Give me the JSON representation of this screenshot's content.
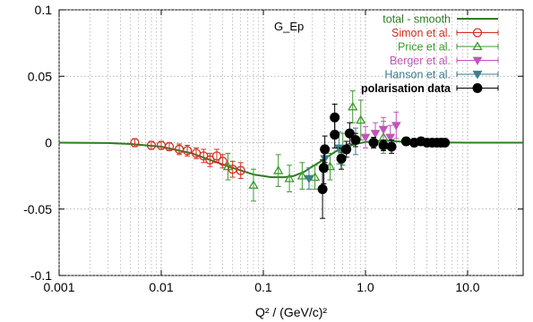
{
  "chart_data": {
    "type": "scatter",
    "title": "G_Ep",
    "xlabel": "Q² / (GeV/c)²",
    "x_scale": "log",
    "xlim": [
      0.001,
      35
    ],
    "ylim": [
      -0.1,
      0.1
    ],
    "x_ticks": [
      {
        "value": 0.001,
        "label": "0.001"
      },
      {
        "value": 0.01,
        "label": "0.01"
      },
      {
        "value": 0.1,
        "label": "0.1"
      },
      {
        "value": 1.0,
        "label": "1.0"
      },
      {
        "value": 10.0,
        "label": "10.0"
      }
    ],
    "y_ticks": [
      {
        "value": -0.1,
        "label": "-0.1"
      },
      {
        "value": -0.05,
        "label": "-0.05"
      },
      {
        "value": 0,
        "label": "0"
      },
      {
        "value": 0.05,
        "label": "0.05"
      },
      {
        "value": 0.1,
        "label": "0.1"
      }
    ],
    "grid": true,
    "legend_position": "top-right",
    "curve": {
      "name": "total - smooth",
      "color": "#2e7d22",
      "x": [
        0.001,
        0.003,
        0.005,
        0.01,
        0.02,
        0.03,
        0.05,
        0.08,
        0.12,
        0.16,
        0.2,
        0.25,
        0.3,
        0.35,
        0.4,
        0.5,
        0.6,
        0.8,
        1.0,
        1.5,
        2.0,
        3.0,
        5.0,
        10.0,
        35.0
      ],
      "y": [
        0,
        -0.0003,
        -0.001,
        -0.003,
        -0.008,
        -0.013,
        -0.019,
        -0.024,
        -0.026,
        -0.026,
        -0.025,
        -0.022,
        -0.018,
        -0.015,
        -0.012,
        -0.007,
        -0.004,
        -0.001,
        0.0005,
        0.0015,
        0.001,
        0.0005,
        0.0002,
        0,
        0
      ]
    },
    "series": [
      {
        "name": "Simon et al.",
        "marker": "circle",
        "color": "#d32f1f",
        "points": [
          {
            "x": 0.0055,
            "y": 0.0,
            "err": 0.003
          },
          {
            "x": 0.008,
            "y": -0.002,
            "err": 0.003
          },
          {
            "x": 0.01,
            "y": -0.002,
            "err": 0.003
          },
          {
            "x": 0.012,
            "y": -0.003,
            "err": 0.003
          },
          {
            "x": 0.015,
            "y": -0.005,
            "err": 0.004
          },
          {
            "x": 0.018,
            "y": -0.006,
            "err": 0.004
          },
          {
            "x": 0.022,
            "y": -0.008,
            "err": 0.004
          },
          {
            "x": 0.026,
            "y": -0.01,
            "err": 0.005
          },
          {
            "x": 0.03,
            "y": -0.013,
            "err": 0.005
          },
          {
            "x": 0.035,
            "y": -0.01,
            "err": 0.005
          },
          {
            "x": 0.04,
            "y": -0.014,
            "err": 0.005
          },
          {
            "x": 0.05,
            "y": -0.02,
            "err": 0.006
          },
          {
            "x": 0.06,
            "y": -0.021,
            "err": 0.006
          }
        ]
      },
      {
        "name": "Price et al.",
        "marker": "triangle-up",
        "color": "#3d9a2f",
        "points": [
          {
            "x": 0.045,
            "y": -0.018,
            "err": 0.01
          },
          {
            "x": 0.08,
            "y": -0.032,
            "err": 0.012
          },
          {
            "x": 0.14,
            "y": -0.021,
            "err": 0.012
          },
          {
            "x": 0.18,
            "y": -0.027,
            "err": 0.01
          },
          {
            "x": 0.24,
            "y": -0.025,
            "err": 0.01
          },
          {
            "x": 0.32,
            "y": -0.026,
            "err": 0.009
          },
          {
            "x": 0.45,
            "y": -0.018,
            "err": 0.01
          },
          {
            "x": 0.6,
            "y": -0.005,
            "err": 0.012
          },
          {
            "x": 0.75,
            "y": 0.027,
            "err": 0.012
          },
          {
            "x": 0.9,
            "y": 0.017,
            "err": 0.015
          },
          {
            "x": 1.5,
            "y": 0.004,
            "err": 0.012
          }
        ]
      },
      {
        "name": "Berger et al.",
        "marker": "triangle-down",
        "color": "#c155b8",
        "points": [
          {
            "x": 1.0,
            "y": 0.004,
            "err": 0.008
          },
          {
            "x": 1.25,
            "y": 0.007,
            "err": 0.008
          },
          {
            "x": 1.5,
            "y": 0.01,
            "err": 0.009
          },
          {
            "x": 1.75,
            "y": 0.004,
            "err": 0.009
          },
          {
            "x": 2.0,
            "y": 0.013,
            "err": 0.01
          }
        ]
      },
      {
        "name": "Hanson et al.",
        "marker": "triangle-down",
        "color": "#3a7e8c",
        "points": [
          {
            "x": 0.28,
            "y": -0.027,
            "err": 0.008
          },
          {
            "x": 0.4,
            "y": -0.012,
            "err": 0.01
          },
          {
            "x": 0.55,
            "y": -0.004,
            "err": 0.012
          },
          {
            "x": 0.8,
            "y": 0.001,
            "err": 0.01
          }
        ]
      },
      {
        "name": "polarisation data",
        "marker": "filled-circle",
        "color": "#000000",
        "points": [
          {
            "x": 0.38,
            "y": -0.035,
            "err": 0.022
          },
          {
            "x": 0.39,
            "y": -0.019,
            "err": 0.012
          },
          {
            "x": 0.4,
            "y": -0.005,
            "err": 0.01
          },
          {
            "x": 0.5,
            "y": 0.006,
            "err": 0.01
          },
          {
            "x": 0.5,
            "y": 0.019,
            "err": 0.01
          },
          {
            "x": 0.58,
            "y": -0.012,
            "err": 0.008
          },
          {
            "x": 0.65,
            "y": -0.005,
            "err": 0.006
          },
          {
            "x": 0.7,
            "y": 0.007,
            "err": 0.008
          },
          {
            "x": 0.8,
            "y": 0.002,
            "err": 0.005
          },
          {
            "x": 1.2,
            "y": 0.0,
            "err": 0.004
          },
          {
            "x": 1.5,
            "y": -0.002,
            "err": 0.004
          },
          {
            "x": 1.8,
            "y": -0.003,
            "err": 0.005
          },
          {
            "x": 2.5,
            "y": 0.001,
            "err": 0.003
          },
          {
            "x": 3.0,
            "y": 0.0,
            "err": 0.003
          },
          {
            "x": 3.5,
            "y": 0.001,
            "err": 0.003
          },
          {
            "x": 4.0,
            "y": 0.0,
            "err": 0.002
          },
          {
            "x": 4.5,
            "y": 0.0,
            "err": 0.002
          },
          {
            "x": 5.0,
            "y": 0.0,
            "err": 0.002
          },
          {
            "x": 5.5,
            "y": 0.0,
            "err": 0.002
          },
          {
            "x": 6.0,
            "y": 0.0,
            "err": 0.002
          }
        ]
      }
    ]
  }
}
